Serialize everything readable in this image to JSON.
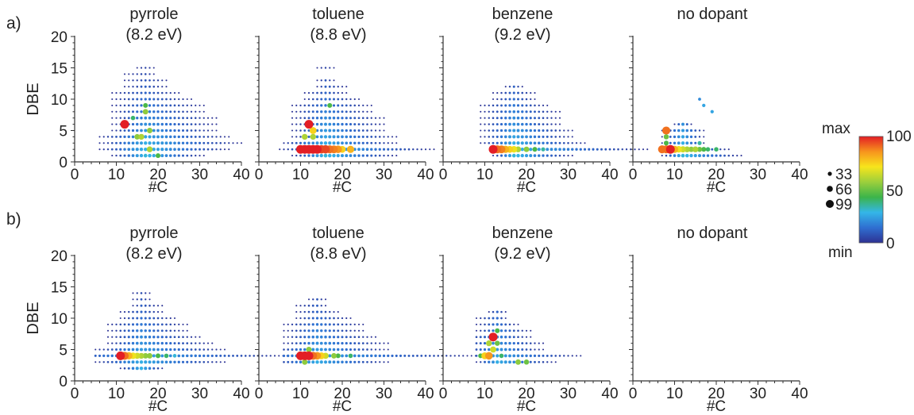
{
  "figure": {
    "row_labels": [
      "a)",
      "b)"
    ],
    "colorbar": {
      "max_label": "max",
      "min_label": "min",
      "ticks": [
        "100",
        "50",
        "0"
      ],
      "stops": [
        "#2e3192",
        "#2f6fd1",
        "#34b6e8",
        "#3cb44a",
        "#9ccf3c",
        "#f7e51c",
        "#f7941d",
        "#e31e25"
      ]
    },
    "size_legend": [
      "33",
      "66",
      "99"
    ]
  },
  "chart_data": [
    {
      "type": "scatter",
      "row": "a",
      "title_line1": "pyrrole",
      "title_line2": "(8.2 eV)",
      "xlabel": "#C",
      "ylabel": "DBE",
      "xlim": [
        0,
        40
      ],
      "ylim": [
        0,
        20
      ],
      "xticks": [
        "0",
        "10",
        "20",
        "30",
        "40"
      ],
      "yticks": [
        "0",
        "5",
        "10",
        "15",
        "20"
      ],
      "grid": {
        "xmin": 6,
        "peak": 17,
        "bands": [
          [
            1,
            2,
            4
          ],
          [
            2,
            3,
            6
          ],
          [
            3,
            3,
            7
          ],
          [
            4,
            3,
            6
          ],
          [
            5,
            2,
            5
          ],
          [
            6,
            2,
            5
          ],
          [
            7,
            2,
            5
          ],
          [
            8,
            2,
            4
          ],
          [
            9,
            2,
            4
          ],
          [
            10,
            2,
            3
          ],
          [
            11,
            2,
            2
          ],
          [
            12,
            1,
            1
          ],
          [
            13,
            1,
            1
          ],
          [
            14,
            1,
            0
          ],
          [
            15,
            0,
            0
          ]
        ]
      },
      "highlights": [
        [
          12,
          6,
          100
        ],
        [
          18,
          2,
          60
        ],
        [
          20,
          1,
          45
        ],
        [
          15,
          4,
          55
        ],
        [
          16,
          4,
          60
        ],
        [
          18,
          5,
          55
        ],
        [
          17,
          8,
          55
        ],
        [
          17,
          9,
          45
        ],
        [
          14,
          7,
          40
        ]
      ]
    },
    {
      "type": "scatter",
      "row": "a",
      "title_line1": "toluene",
      "title_line2": "(8.8 eV)",
      "xlabel": "#C",
      "ylabel": "",
      "xlim": [
        0,
        40
      ],
      "ylim": [
        0,
        20
      ],
      "xticks": [
        "0",
        "10",
        "20",
        "30",
        "40"
      ],
      "yticks": [],
      "grid": {
        "xmin": 6,
        "peak": 16,
        "bands": [
          [
            1,
            2,
            5
          ],
          [
            2,
            3,
            8
          ],
          [
            3,
            3,
            5
          ],
          [
            4,
            2,
            5
          ],
          [
            5,
            2,
            4
          ],
          [
            6,
            2,
            4
          ],
          [
            7,
            2,
            4
          ],
          [
            8,
            2,
            3
          ],
          [
            9,
            2,
            3
          ],
          [
            10,
            1,
            2
          ],
          [
            11,
            1,
            1
          ],
          [
            12,
            0,
            1
          ],
          [
            13,
            0,
            0
          ],
          [
            15,
            0,
            0
          ]
        ]
      },
      "highlights": [
        [
          10,
          2,
          100
        ],
        [
          11,
          2,
          100
        ],
        [
          12,
          2,
          100
        ],
        [
          13,
          2,
          100
        ],
        [
          14,
          2,
          100
        ],
        [
          15,
          2,
          95
        ],
        [
          16,
          2,
          95
        ],
        [
          17,
          2,
          90
        ],
        [
          18,
          2,
          88
        ],
        [
          19,
          2,
          85
        ],
        [
          20,
          2,
          75
        ],
        [
          22,
          2,
          80
        ],
        [
          12,
          6,
          100
        ],
        [
          13,
          5,
          75
        ],
        [
          11,
          4,
          60
        ],
        [
          13,
          4,
          60
        ],
        [
          17,
          9,
          45
        ]
      ]
    },
    {
      "type": "scatter",
      "row": "a",
      "title_line1": "benzene",
      "title_line2": "(9.2 eV)",
      "xlabel": "#C",
      "ylabel": "",
      "xlim": [
        0,
        40
      ],
      "ylim": [
        0,
        20
      ],
      "xticks": [
        "0",
        "10",
        "20",
        "30",
        "40"
      ],
      "yticks": [],
      "grid": {
        "xmin": 8,
        "peak": 17,
        "bands": [
          [
            1,
            1,
            4
          ],
          [
            2,
            1,
            10
          ],
          [
            3,
            2,
            5
          ],
          [
            4,
            2,
            4
          ],
          [
            5,
            2,
            4
          ],
          [
            6,
            2,
            3
          ],
          [
            7,
            2,
            3
          ],
          [
            8,
            2,
            3
          ],
          [
            9,
            2,
            2
          ],
          [
            10,
            1,
            1
          ],
          [
            11,
            1,
            1
          ],
          [
            12,
            0,
            0
          ]
        ]
      },
      "highlights": [
        [
          12,
          2,
          100
        ],
        [
          13,
          2,
          90
        ],
        [
          14,
          2,
          88
        ],
        [
          15,
          2,
          80
        ],
        [
          16,
          2,
          75
        ],
        [
          17,
          2,
          70
        ],
        [
          18,
          2,
          60
        ],
        [
          20,
          2,
          55
        ],
        [
          22,
          2,
          45
        ],
        [
          24,
          2,
          35
        ]
      ]
    },
    {
      "type": "scatter",
      "row": "a",
      "title_line1": "no dopant",
      "title_line2": "",
      "xlabel": "#C",
      "ylabel": "",
      "xlim": [
        0,
        40
      ],
      "ylim": [
        0,
        20
      ],
      "xticks": [
        "0",
        "10",
        "20",
        "30",
        "40"
      ],
      "yticks": [],
      "grid": {
        "xmin": 7,
        "peak": 12,
        "bands": [
          [
            1,
            1,
            4
          ],
          [
            2,
            1,
            3
          ],
          [
            3,
            1,
            1
          ],
          [
            4,
            1,
            1
          ],
          [
            5,
            1,
            1
          ],
          [
            6,
            0,
            0
          ]
        ]
      },
      "highlights": [
        [
          7,
          2,
          90
        ],
        [
          8,
          2,
          90
        ],
        [
          9,
          2,
          100
        ],
        [
          10,
          2,
          80
        ],
        [
          11,
          2,
          70
        ],
        [
          12,
          2,
          65
        ],
        [
          13,
          2,
          60
        ],
        [
          14,
          2,
          55
        ],
        [
          15,
          2,
          60
        ],
        [
          16,
          2,
          50
        ],
        [
          17,
          2,
          45
        ],
        [
          18,
          2,
          40
        ],
        [
          20,
          2,
          40
        ],
        [
          8,
          5,
          90
        ],
        [
          8,
          4,
          50
        ],
        [
          8,
          3,
          45
        ],
        [
          16,
          3,
          35
        ],
        [
          17,
          9,
          25
        ],
        [
          16,
          10,
          20
        ],
        [
          19,
          8,
          25
        ]
      ]
    },
    {
      "type": "scatter",
      "row": "b",
      "title_line1": "pyrrole",
      "title_line2": "(8.2 eV)",
      "xlabel": "#C",
      "ylabel": "DBE",
      "xlim": [
        0,
        40
      ],
      "ylim": [
        0,
        20
      ],
      "xticks": [
        "0",
        "10",
        "20",
        "30",
        "40"
      ],
      "yticks": [
        "0",
        "5",
        "10",
        "15",
        "20"
      ],
      "grid": {
        "xmin": 5,
        "peak": 16,
        "bands": [
          [
            2,
            1,
            1
          ],
          [
            3,
            3,
            6
          ],
          [
            4,
            6,
            11
          ],
          [
            5,
            3,
            6
          ],
          [
            6,
            2,
            5
          ],
          [
            7,
            2,
            4
          ],
          [
            8,
            2,
            3
          ],
          [
            9,
            2,
            3
          ],
          [
            10,
            1,
            2
          ],
          [
            11,
            1,
            1
          ],
          [
            12,
            0,
            1
          ],
          [
            13,
            0,
            0
          ],
          [
            14,
            0,
            0
          ]
        ]
      },
      "highlights": [
        [
          11,
          4,
          100
        ],
        [
          12,
          4,
          90
        ],
        [
          13,
          4,
          80
        ],
        [
          14,
          4,
          70
        ],
        [
          15,
          4,
          65
        ],
        [
          16,
          4,
          60
        ],
        [
          17,
          4,
          55
        ],
        [
          18,
          4,
          55
        ],
        [
          20,
          4,
          45
        ],
        [
          22,
          4,
          40
        ],
        [
          24,
          4,
          30
        ]
      ]
    },
    {
      "type": "scatter",
      "row": "b",
      "title_line1": "toluene",
      "title_line2": "(8.8 eV)",
      "xlabel": "#C",
      "ylabel": "",
      "xlim": [
        0,
        40
      ],
      "ylim": [
        0,
        20
      ],
      "xticks": [
        "0",
        "10",
        "20",
        "30",
        "40"
      ],
      "yticks": [],
      "grid": {
        "xmin": 6,
        "peak": 14,
        "bands": [
          [
            3,
            3,
            5
          ],
          [
            4,
            5,
            12
          ],
          [
            5,
            3,
            5
          ],
          [
            6,
            2,
            5
          ],
          [
            7,
            2,
            4
          ],
          [
            8,
            2,
            3
          ],
          [
            9,
            2,
            3
          ],
          [
            10,
            1,
            2
          ],
          [
            11,
            1,
            1
          ],
          [
            12,
            1,
            0
          ],
          [
            13,
            0,
            0
          ]
        ]
      },
      "highlights": [
        [
          10,
          4,
          100
        ],
        [
          11,
          4,
          100
        ],
        [
          12,
          4,
          100
        ],
        [
          13,
          4,
          90
        ],
        [
          14,
          4,
          85
        ],
        [
          15,
          4,
          75
        ],
        [
          16,
          4,
          65
        ],
        [
          18,
          4,
          55
        ],
        [
          11,
          3,
          55
        ],
        [
          12,
          5,
          55
        ],
        [
          19,
          4,
          45
        ],
        [
          22,
          4,
          40
        ]
      ]
    },
    {
      "type": "scatter",
      "row": "b",
      "title_line1": "benzene",
      "title_line2": "(9.2 eV)",
      "xlabel": "#C",
      "ylabel": "",
      "xlim": [
        0,
        40
      ],
      "ylim": [
        0,
        20
      ],
      "xticks": [
        "0",
        "10",
        "20",
        "30",
        "40"
      ],
      "yticks": [],
      "grid": {
        "xmin": 8,
        "peak": 13,
        "bands": [
          [
            3,
            1,
            4
          ],
          [
            4,
            2,
            6
          ],
          [
            5,
            2,
            3
          ],
          [
            6,
            2,
            3
          ],
          [
            7,
            2,
            2
          ],
          [
            8,
            1,
            2
          ],
          [
            9,
            1,
            1
          ],
          [
            10,
            1,
            0
          ],
          [
            11,
            0,
            0
          ]
        ]
      },
      "highlights": [
        [
          10,
          4,
          75
        ],
        [
          11,
          4,
          85
        ],
        [
          12,
          7,
          100
        ],
        [
          12,
          5,
          65
        ],
        [
          11,
          6,
          60
        ],
        [
          13,
          6,
          50
        ],
        [
          13,
          8,
          45
        ],
        [
          9,
          4,
          45
        ],
        [
          14,
          4,
          40
        ],
        [
          18,
          3,
          55
        ],
        [
          20,
          3,
          50
        ]
      ]
    },
    {
      "type": "scatter",
      "row": "b",
      "title_line1": "no dopant",
      "title_line2": "",
      "xlabel": "#C",
      "ylabel": "",
      "xlim": [
        0,
        40
      ],
      "ylim": [
        0,
        20
      ],
      "xticks": [
        "0",
        "10",
        "20",
        "30",
        "40"
      ],
      "yticks": [],
      "grid": null,
      "highlights": []
    }
  ]
}
